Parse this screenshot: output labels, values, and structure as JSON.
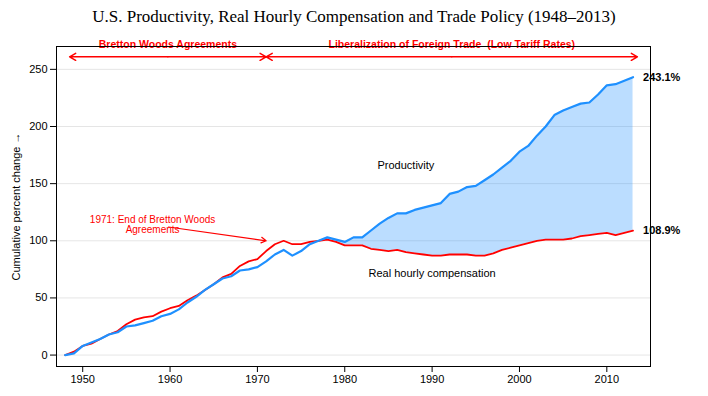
{
  "chart_data": {
    "type": "line",
    "title": "U.S. Productivity, Real Hourly Compensation and Trade Policy (1948–2013)",
    "ylabel": "Cumulative percent change",
    "xlim": [
      1947,
      2015
    ],
    "ylim": [
      -10,
      270
    ],
    "xticks": [
      1950,
      1960,
      1970,
      1980,
      1990,
      2000,
      2010
    ],
    "yticks": [
      0,
      50,
      100,
      150,
      200,
      250
    ],
    "grid": true,
    "x": [
      1948,
      1949,
      1950,
      1951,
      1952,
      1953,
      1954,
      1955,
      1956,
      1957,
      1958,
      1959,
      1960,
      1961,
      1962,
      1963,
      1964,
      1965,
      1966,
      1967,
      1968,
      1969,
      1970,
      1971,
      1972,
      1973,
      1974,
      1975,
      1976,
      1977,
      1978,
      1979,
      1980,
      1981,
      1982,
      1983,
      1984,
      1985,
      1986,
      1987,
      1988,
      1989,
      1990,
      1991,
      1992,
      1993,
      1994,
      1995,
      1996,
      1997,
      1998,
      1999,
      2000,
      2001,
      2002,
      2003,
      2004,
      2005,
      2006,
      2007,
      2008,
      2009,
      2010,
      2011,
      2012,
      2013
    ],
    "series": [
      {
        "name": "Productivity",
        "color": "#1E90FF",
        "label_x": 1987,
        "label_y": 163,
        "end_label": "243.1%",
        "values": [
          0,
          1.5,
          8,
          11,
          14,
          18,
          20,
          25,
          26,
          28,
          30,
          34,
          36,
          40,
          46,
          51,
          57,
          62,
          67,
          69,
          74,
          75,
          77,
          82,
          88,
          92,
          87,
          91,
          97,
          100,
          103,
          101,
          99,
          103,
          103,
          109,
          115,
          120,
          124,
          124,
          127,
          129,
          131,
          133,
          141,
          143,
          147,
          148,
          153,
          158,
          164,
          170,
          178,
          183,
          192,
          200,
          210,
          214,
          217,
          220,
          221,
          228,
          236,
          237,
          240,
          243.1
        ]
      },
      {
        "name": "Real hourly compensation",
        "color": "#FF0000",
        "label_x": 1990,
        "label_y": 75,
        "end_label": "108.9%",
        "values": [
          0,
          3,
          8,
          10,
          14,
          18,
          21,
          27,
          31,
          33,
          34,
          38,
          41,
          43,
          48,
          52,
          57,
          62,
          68,
          71,
          78,
          82,
          84,
          91,
          97,
          100,
          97,
          97,
          99,
          100,
          101,
          99,
          96,
          96,
          96,
          93,
          92,
          91,
          92,
          90,
          89,
          88,
          87,
          87,
          88,
          88,
          88,
          87,
          87,
          89,
          92,
          94,
          96,
          98,
          100,
          101,
          101,
          101,
          102,
          104,
          105,
          106,
          107,
          105,
          107,
          108.9
        ]
      }
    ],
    "annotations": [
      {
        "text": "1971: End of Bretton Woods\nAgreements",
        "x": 1971,
        "y": 100,
        "text_x": 1958,
        "text_y": 114,
        "color": "#FF0000"
      }
    ],
    "eras": [
      {
        "label": "Bretton Woods Agreements",
        "start": 1948.5,
        "end": 1971.0,
        "y": 261,
        "color": "#FF0000"
      },
      {
        "label": "Liberalization of Foreign Trade  (Low Tariff Rates)",
        "start": 1971.0,
        "end": 2013.5,
        "y": 261,
        "color": "#FF0000"
      }
    ]
  }
}
